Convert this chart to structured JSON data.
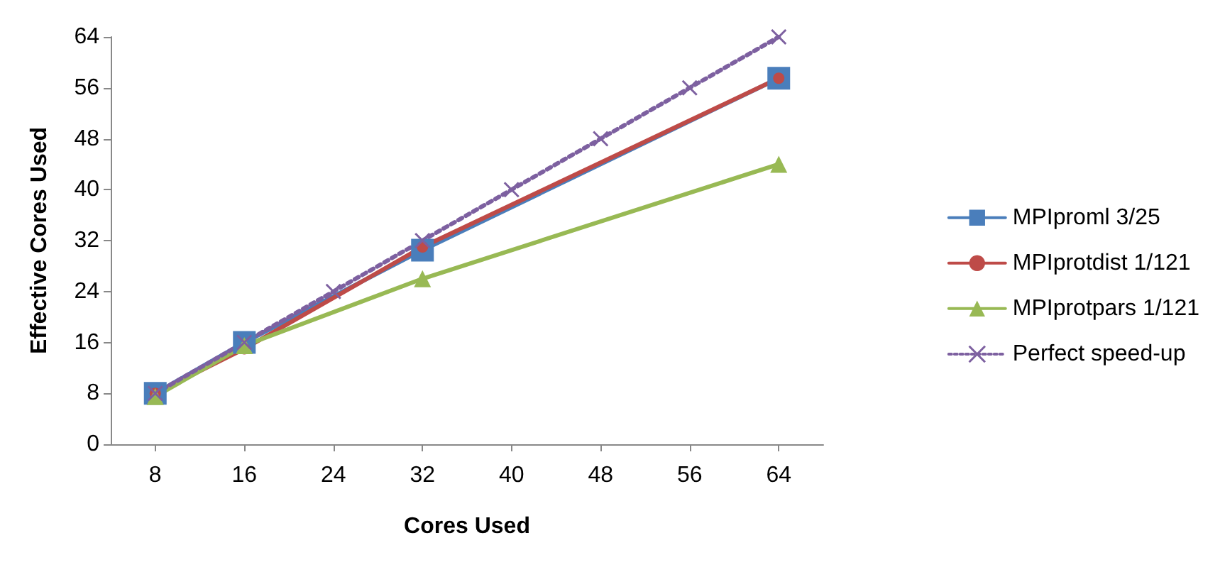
{
  "chart_data": {
    "type": "line",
    "xlabel": "Cores Used",
    "ylabel": "Effective Cores Used",
    "xlim": [
      4,
      68
    ],
    "xticks": [
      8,
      16,
      24,
      32,
      40,
      48,
      56,
      64
    ],
    "ylim": [
      0,
      64
    ],
    "yticks": [
      0,
      8,
      16,
      24,
      32,
      40,
      48,
      56,
      64
    ],
    "legend": "right",
    "series": [
      {
        "name": "MPIproml 3/25",
        "color": "#4a7ebb",
        "marker": "square",
        "x": [
          8,
          16,
          32,
          64
        ],
        "values": [
          8,
          16,
          30.5,
          57.5
        ]
      },
      {
        "name": "MPIprotdist 1/121",
        "color": "#be4b48",
        "marker": "circle",
        "x": [
          8,
          16,
          32,
          64
        ],
        "values": [
          8,
          15,
          31,
          57.5
        ]
      },
      {
        "name": "MPIprotpars 1/121",
        "color": "#98b954",
        "marker": "triangle",
        "x": [
          8,
          16,
          32,
          64
        ],
        "values": [
          7.5,
          15.5,
          26,
          44
        ]
      },
      {
        "name": "Perfect speed-up",
        "color": "#7d60a0",
        "marker": "cross",
        "line_style": "dotted",
        "x": [
          8,
          16,
          24,
          32,
          40,
          48,
          56,
          64
        ],
        "values": [
          8,
          16,
          24,
          32,
          40,
          48,
          56,
          64
        ]
      }
    ]
  }
}
